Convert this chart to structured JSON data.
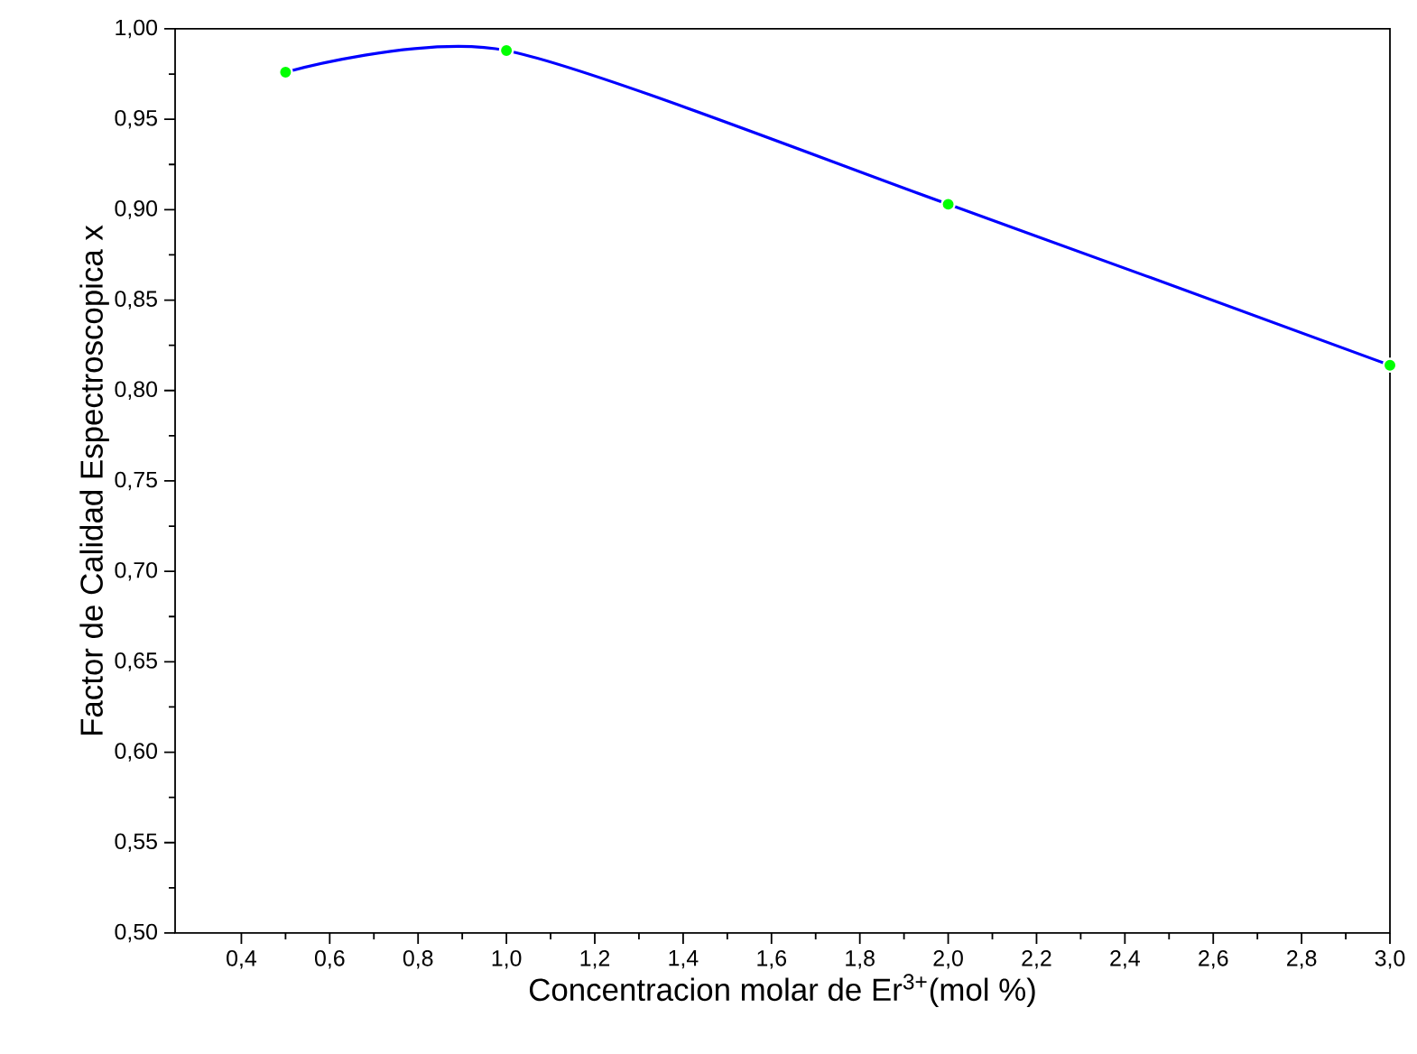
{
  "chart_data": {
    "type": "line",
    "xlabel": "Concentracion molar de Er$^{3+}$(mol %)",
    "ylabel": "Factor de Calidad Espectroscopica x",
    "x": [
      0.5,
      1.0,
      2.0,
      3.0
    ],
    "series": [
      {
        "color": "#0000ff",
        "marker": "none",
        "values": [
          0.976,
          0.988,
          0.903,
          0.814
        ]
      },
      {
        "type": "scatter",
        "color": "#00ff00",
        "marker": "circle",
        "values": [
          0.976,
          0.988,
          0.903,
          0.814
        ]
      }
    ],
    "xlim": [
      0.25,
      3.0
    ],
    "ylim": [
      0.5,
      1.0
    ],
    "xticks": [
      {
        "value": 0.4,
        "label": "0,4"
      },
      {
        "value": 0.6,
        "label": "0,6"
      },
      {
        "value": 0.8,
        "label": "0,8"
      },
      {
        "value": 1.0,
        "label": "1,0"
      },
      {
        "value": 1.2,
        "label": "1,2"
      },
      {
        "value": 1.4,
        "label": "1,4"
      },
      {
        "value": 1.6,
        "label": "1,6"
      },
      {
        "value": 1.8,
        "label": "1,8"
      },
      {
        "value": 2.0,
        "label": "2,0"
      },
      {
        "value": 2.2,
        "label": "2,2"
      },
      {
        "value": 2.4,
        "label": "2,4"
      },
      {
        "value": 2.6,
        "label": "2,6"
      },
      {
        "value": 2.8,
        "label": "2,8"
      },
      {
        "value": 3.0,
        "label": "3,0"
      }
    ],
    "yticks": [
      {
        "value": 0.5,
        "label": "0,50"
      },
      {
        "value": 0.55,
        "label": "0,55"
      },
      {
        "value": 0.6,
        "label": "0,60"
      },
      {
        "value": 0.65,
        "label": "0,65"
      },
      {
        "value": 0.7,
        "label": "0,70"
      },
      {
        "value": 0.75,
        "label": "0,75"
      },
      {
        "value": 0.8,
        "label": "0,80"
      },
      {
        "value": 0.85,
        "label": "0,85"
      },
      {
        "value": 0.9,
        "label": "0,90"
      },
      {
        "value": 0.95,
        "label": "0,95"
      },
      {
        "value": 1.0,
        "label": "1,00"
      }
    ],
    "grid": false,
    "line_style": "solid"
  }
}
